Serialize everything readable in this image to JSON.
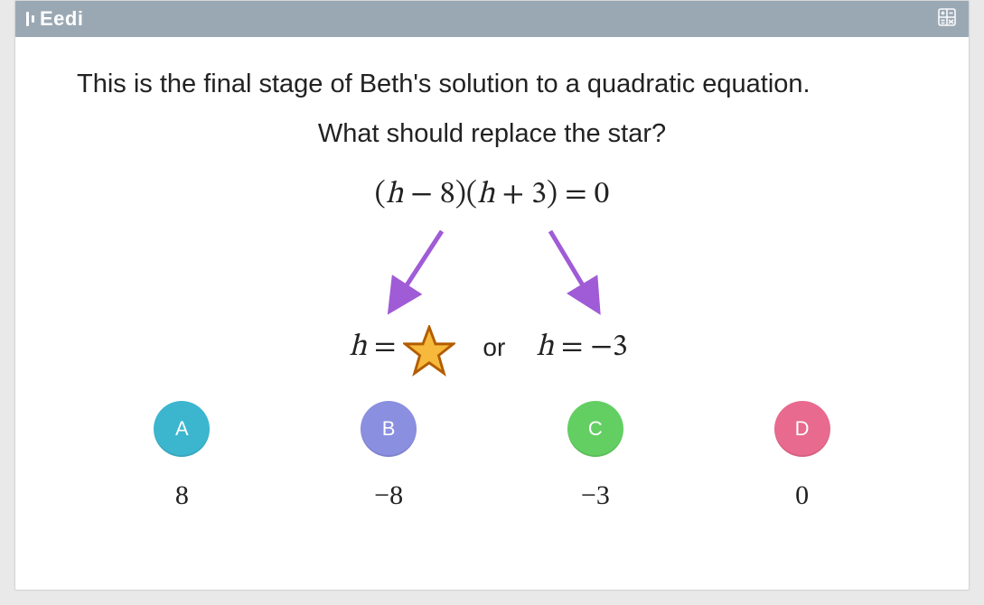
{
  "header": {
    "logo_text": "Eedi"
  },
  "question": {
    "line1": "This is the final stage of Beth's solution to a quadratic equation.",
    "line2": "What should replace the star?",
    "equation": {
      "lhs_a_var": "h",
      "lhs_a_op": "−",
      "lhs_a_num": "8",
      "lhs_b_var": "h",
      "lhs_b_op": "+",
      "lhs_b_num": "3",
      "eq": "=",
      "rhs": "0"
    },
    "sol_left_var": "h",
    "sol_left_eq": "=",
    "or_word": "or",
    "sol_right_var": "h",
    "sol_right_eq": "=",
    "sol_right_val": "−3"
  },
  "style": {
    "header_bg": "#9aa8b4",
    "arrow_color": "#a05bd6",
    "star_fill": "#f6b93b",
    "star_stroke": "#b35c00"
  },
  "answers": [
    {
      "letter": "A",
      "value": "8",
      "color": "#3cb6cf"
    },
    {
      "letter": "B",
      "value": "−8",
      "color": "#8a8fe0"
    },
    {
      "letter": "C",
      "value": "−3",
      "color": "#63cf63"
    },
    {
      "letter": "D",
      "value": "0",
      "color": "#e86a8e"
    }
  ]
}
